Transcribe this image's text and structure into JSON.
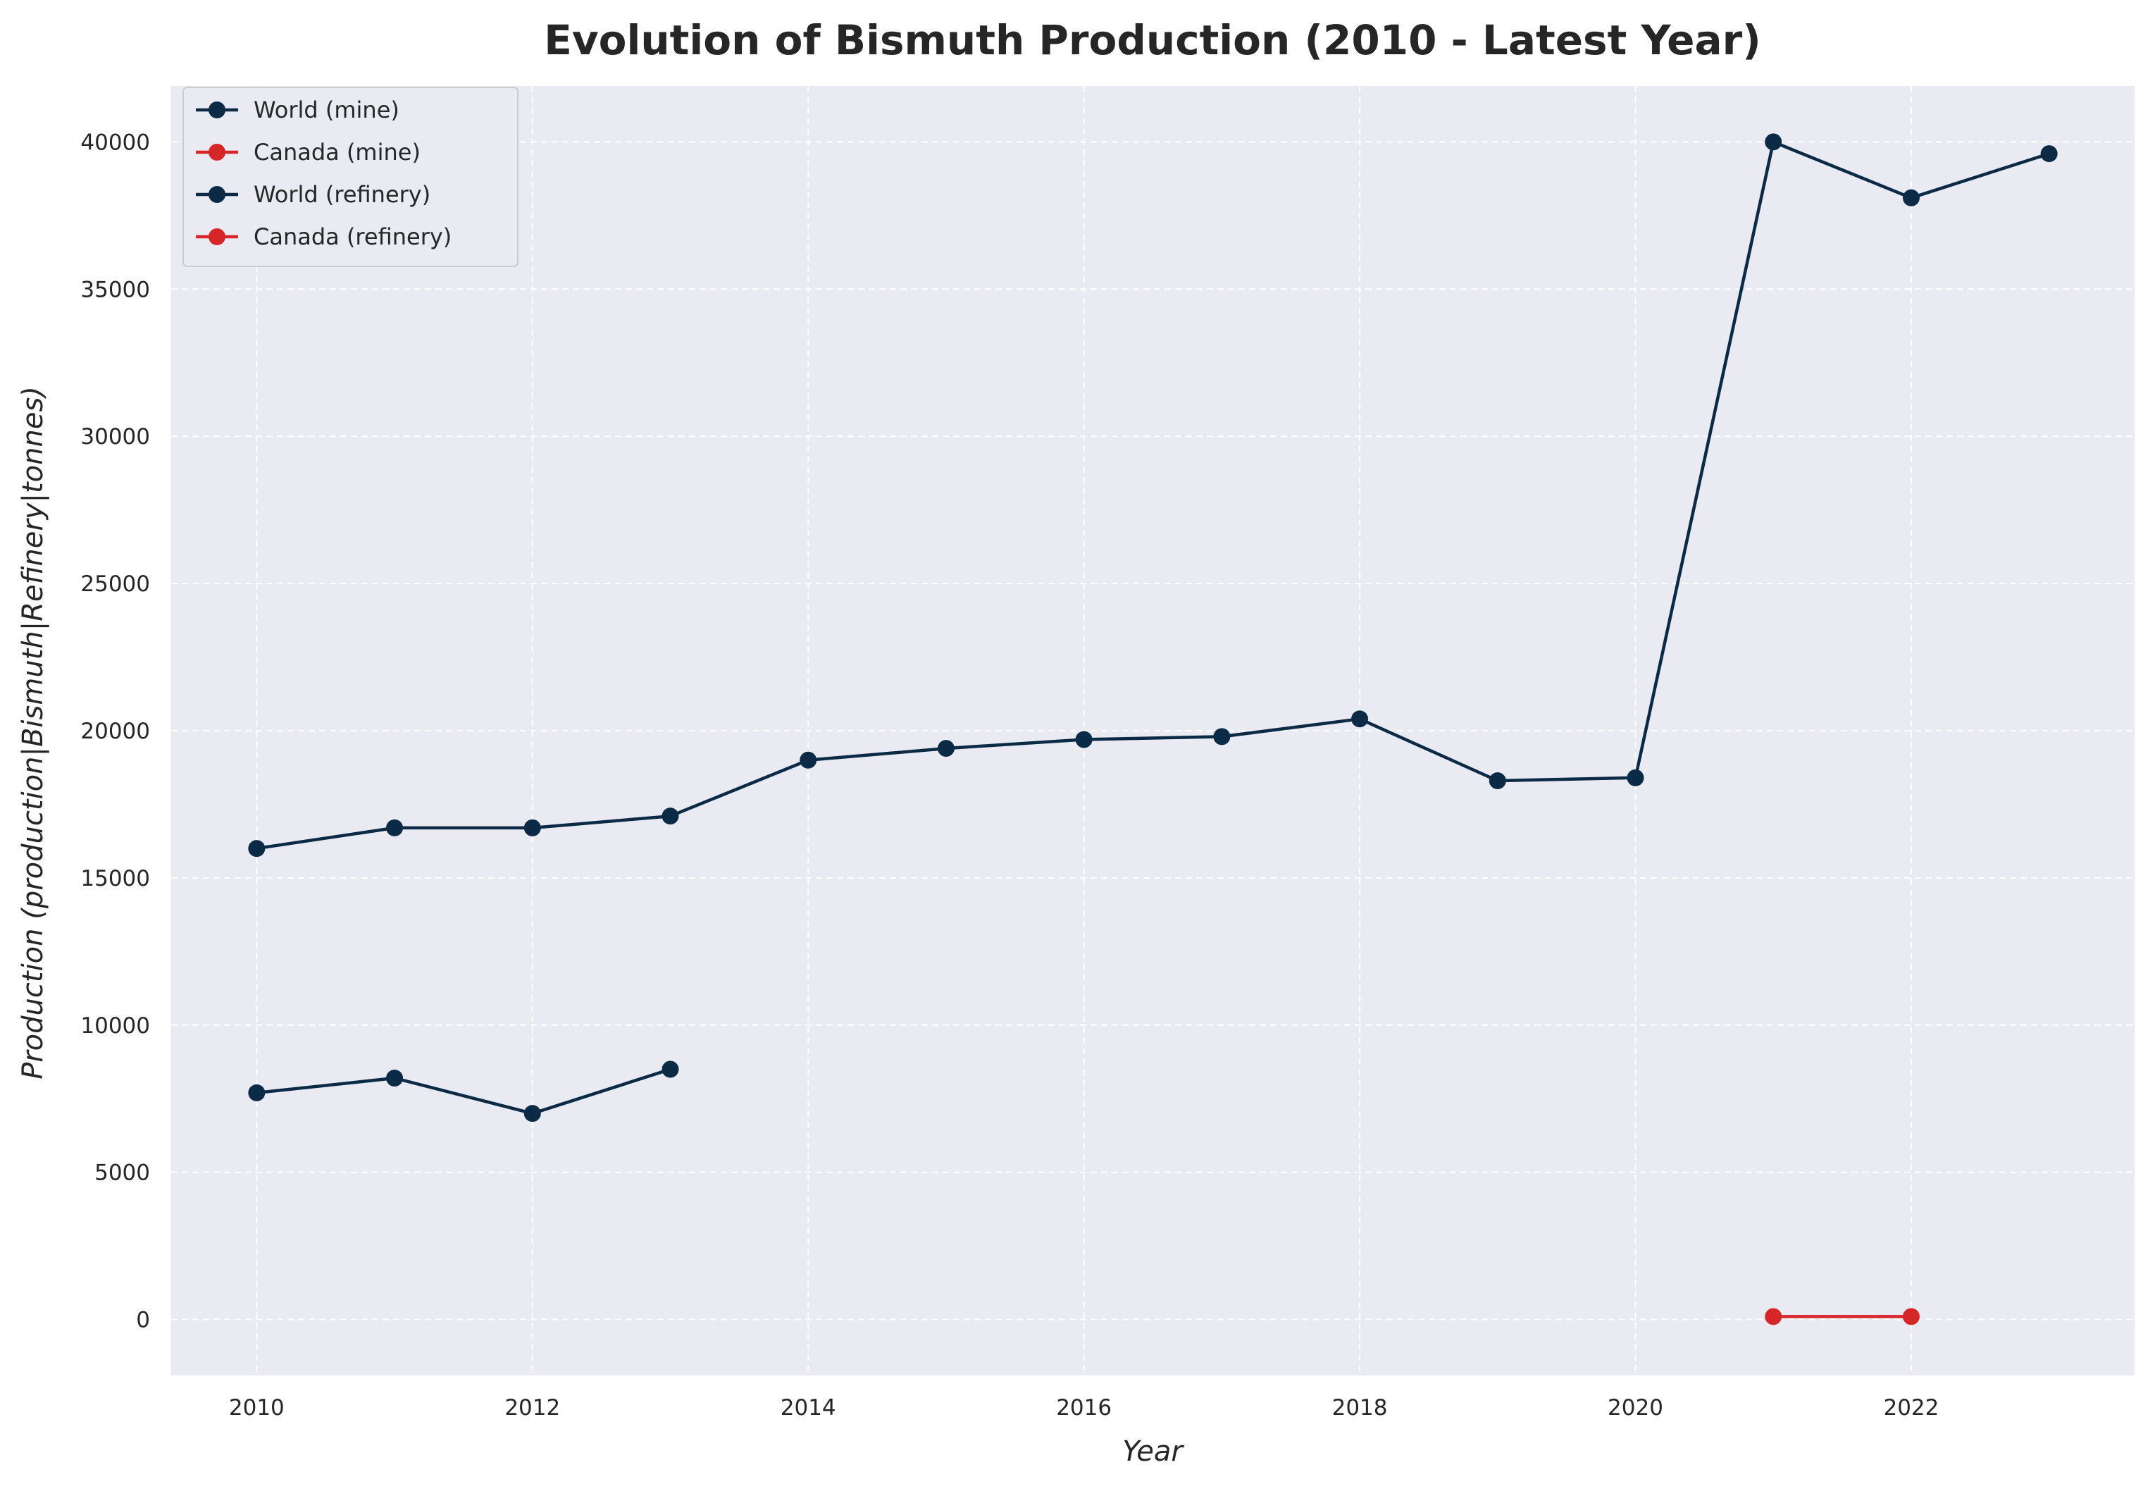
{
  "chart_data": {
    "type": "line",
    "title": "Evolution of Bismuth Production (2010 - Latest Year)",
    "xlabel": "Year",
    "ylabel": "Production (production|Bismuth|Refinery|tonnes)",
    "xlim": [
      2009.38,
      2023.62
    ],
    "ylim": [
      -1900,
      41900
    ],
    "x_ticks": [
      2010,
      2012,
      2014,
      2016,
      2018,
      2020,
      2022
    ],
    "x_tick_labels": [
      "2010",
      "2012",
      "2014",
      "2016",
      "2018",
      "2020",
      "2022"
    ],
    "y_ticks": [
      0,
      5000,
      10000,
      15000,
      20000,
      25000,
      30000,
      35000,
      40000
    ],
    "y_tick_labels": [
      "0",
      "5000",
      "10000",
      "15000",
      "20000",
      "25000",
      "30000",
      "35000",
      "40000"
    ],
    "grid": true,
    "legend_position": "top-left",
    "background_color": "#eaeaf2",
    "series": [
      {
        "name": "World (mine)",
        "color": "#0b2a45",
        "marker": "circle",
        "points": [
          {
            "x": 2010,
            "y": 7700
          },
          {
            "x": 2011,
            "y": 8200
          },
          {
            "x": 2012,
            "y": 7000
          },
          {
            "x": 2013,
            "y": 8500
          }
        ]
      },
      {
        "name": "Canada (mine)",
        "color": "#d62728",
        "marker": "circle",
        "points": []
      },
      {
        "name": "World (refinery)",
        "color": "#0b2a45",
        "marker": "circle",
        "points": [
          {
            "x": 2010,
            "y": 16000
          },
          {
            "x": 2011,
            "y": 16700
          },
          {
            "x": 2012,
            "y": 16700
          },
          {
            "x": 2013,
            "y": 17100
          },
          {
            "x": 2014,
            "y": 19000
          },
          {
            "x": 2015,
            "y": 19400
          },
          {
            "x": 2016,
            "y": 19700
          },
          {
            "x": 2017,
            "y": 19800
          },
          {
            "x": 2018,
            "y": 20400
          },
          {
            "x": 2019,
            "y": 18300
          },
          {
            "x": 2020,
            "y": 18400
          },
          {
            "x": 2021,
            "y": 40000
          },
          {
            "x": 2022,
            "y": 38100
          },
          {
            "x": 2023,
            "y": 39600
          }
        ]
      },
      {
        "name": "Canada (refinery)",
        "color": "#d62728",
        "marker": "circle",
        "points": [
          {
            "x": 2021,
            "y": 100
          },
          {
            "x": 2022,
            "y": 100
          }
        ]
      }
    ]
  }
}
